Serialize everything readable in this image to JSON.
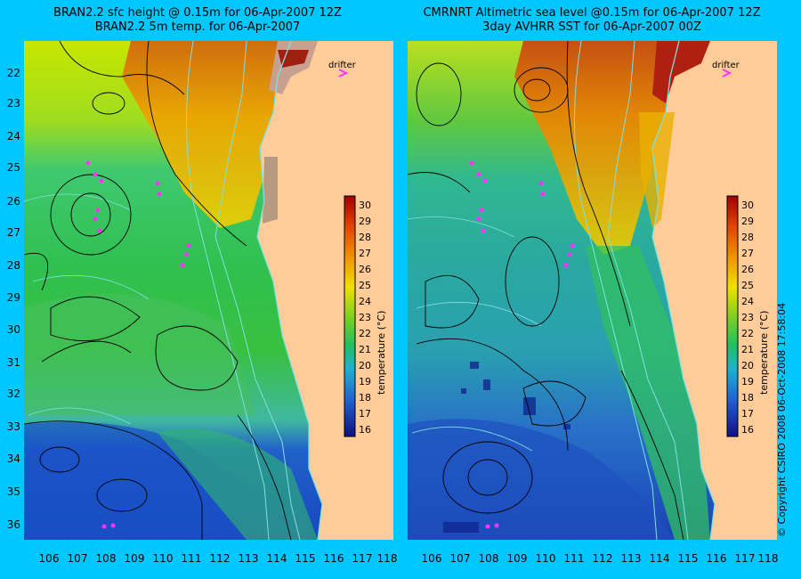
{
  "left": {
    "title_line1": "BRAN2.2 sfc height @ 0.15m for 06-Apr-2007 12Z",
    "title_line2": "BRAN2.2 5m temp. for 06-Apr-2007"
  },
  "right": {
    "title_line1": "CMRNRT Altimetric sea level  @0.15m  for 06-Apr-2007 12Z",
    "title_line2": "3day AVHRR SST for 06-Apr-2007 00Z"
  },
  "drifter_label": "drifter",
  "colorbar": {
    "label": "temperature (°C)",
    "ticks": [
      "30",
      "29",
      "28",
      "27",
      "26",
      "25",
      "24",
      "23",
      "22",
      "21",
      "20",
      "19",
      "18",
      "17",
      "16"
    ]
  },
  "lat_ticks": [
    "22",
    "23",
    "24",
    "25",
    "26",
    "27",
    "28",
    "29",
    "30",
    "31",
    "32",
    "33",
    "34",
    "35",
    "36"
  ],
  "lon_ticks": [
    "106",
    "107",
    "108",
    "109",
    "110",
    "111",
    "112",
    "113",
    "114",
    "115",
    "116",
    "117",
    "118"
  ],
  "copyright": "© Copyright CSIRO 2008   06-Oct-2008 17:58:04",
  "colors": {
    "background": "#00c8ff",
    "land": "#ffcc99",
    "coast": "#7fe0e0",
    "drifter": "#ff33ff",
    "contour": "#000000"
  }
}
